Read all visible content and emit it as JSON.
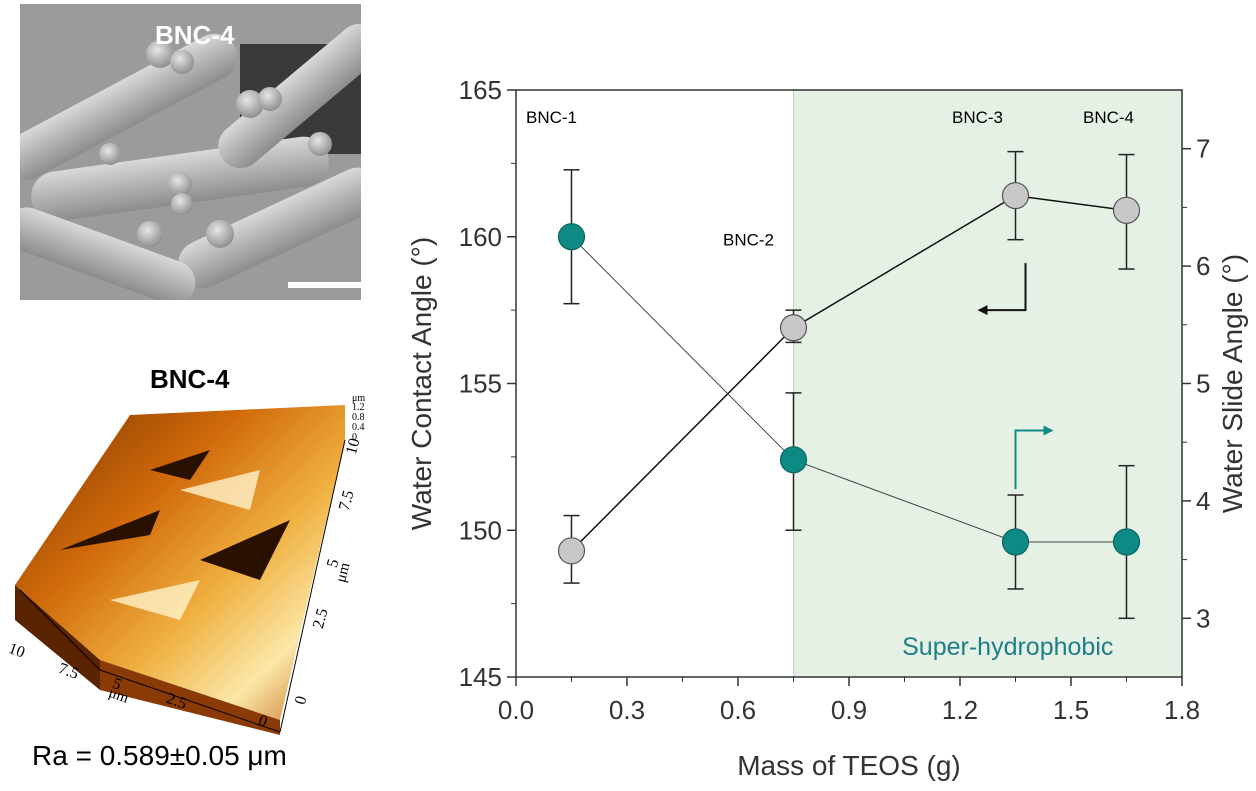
{
  "sem_image": {
    "label": "BNC-4"
  },
  "afm_image": {
    "title": "BNC-4",
    "roughness": "Ra = 0.589±0.05 μm",
    "x_ticks": [
      "10",
      "7.5",
      "5",
      "2.5",
      "0"
    ],
    "y_ticks": [
      "10",
      "7.5",
      "5",
      "2.5",
      "0"
    ],
    "z_ticks": [
      "μm",
      "1.2",
      "0.8",
      "0.4",
      "0"
    ],
    "unit": "μm"
  },
  "colors": {
    "wca": "#c8c8c8",
    "wsa": "#0e8a85",
    "shade": "#e6f1e6",
    "shade_label": "#1f7f86"
  },
  "chart_data": {
    "type": "scatter",
    "xlabel": "Mass of TEOS (g)",
    "ylabel": "Water Contact Angle (°)",
    "y2label": "Water Slide Angle (°)",
    "xlim": [
      0.0,
      1.8
    ],
    "ylim": [
      145,
      165
    ],
    "y2lim": [
      2.5,
      7.5
    ],
    "x_ticks": [
      "0.0",
      "0.3",
      "0.6",
      "0.9",
      "1.2",
      "1.5",
      "1.8"
    ],
    "y_ticks": [
      "145",
      "150",
      "155",
      "160",
      "165"
    ],
    "y2_ticks": [
      "3",
      "4",
      "5",
      "6",
      "7"
    ],
    "shaded_region": {
      "x_start": 0.75,
      "x_end": 1.8,
      "label": "Super-hydrophobic"
    },
    "annotations": [
      "BNC-1",
      "BNC-2",
      "BNC-3",
      "BNC-4"
    ],
    "series": [
      {
        "name": "Water Contact Angle",
        "axis": "left",
        "x": [
          0.15,
          0.75,
          1.35,
          1.65
        ],
        "y": [
          149.3,
          156.9,
          161.4,
          160.9
        ],
        "err_low": [
          148.2,
          156.4,
          159.9,
          158.9
        ],
        "err_high": [
          150.5,
          157.5,
          162.9,
          162.8
        ]
      },
      {
        "name": "Water Slide Angle",
        "axis": "right",
        "x": [
          0.15,
          0.75,
          1.35,
          1.65
        ],
        "y": [
          6.25,
          4.35,
          3.65,
          3.65
        ],
        "err_low": [
          5.68,
          3.75,
          3.25,
          3.0
        ],
        "err_high": [
          6.82,
          4.92,
          4.05,
          4.3
        ]
      }
    ]
  }
}
